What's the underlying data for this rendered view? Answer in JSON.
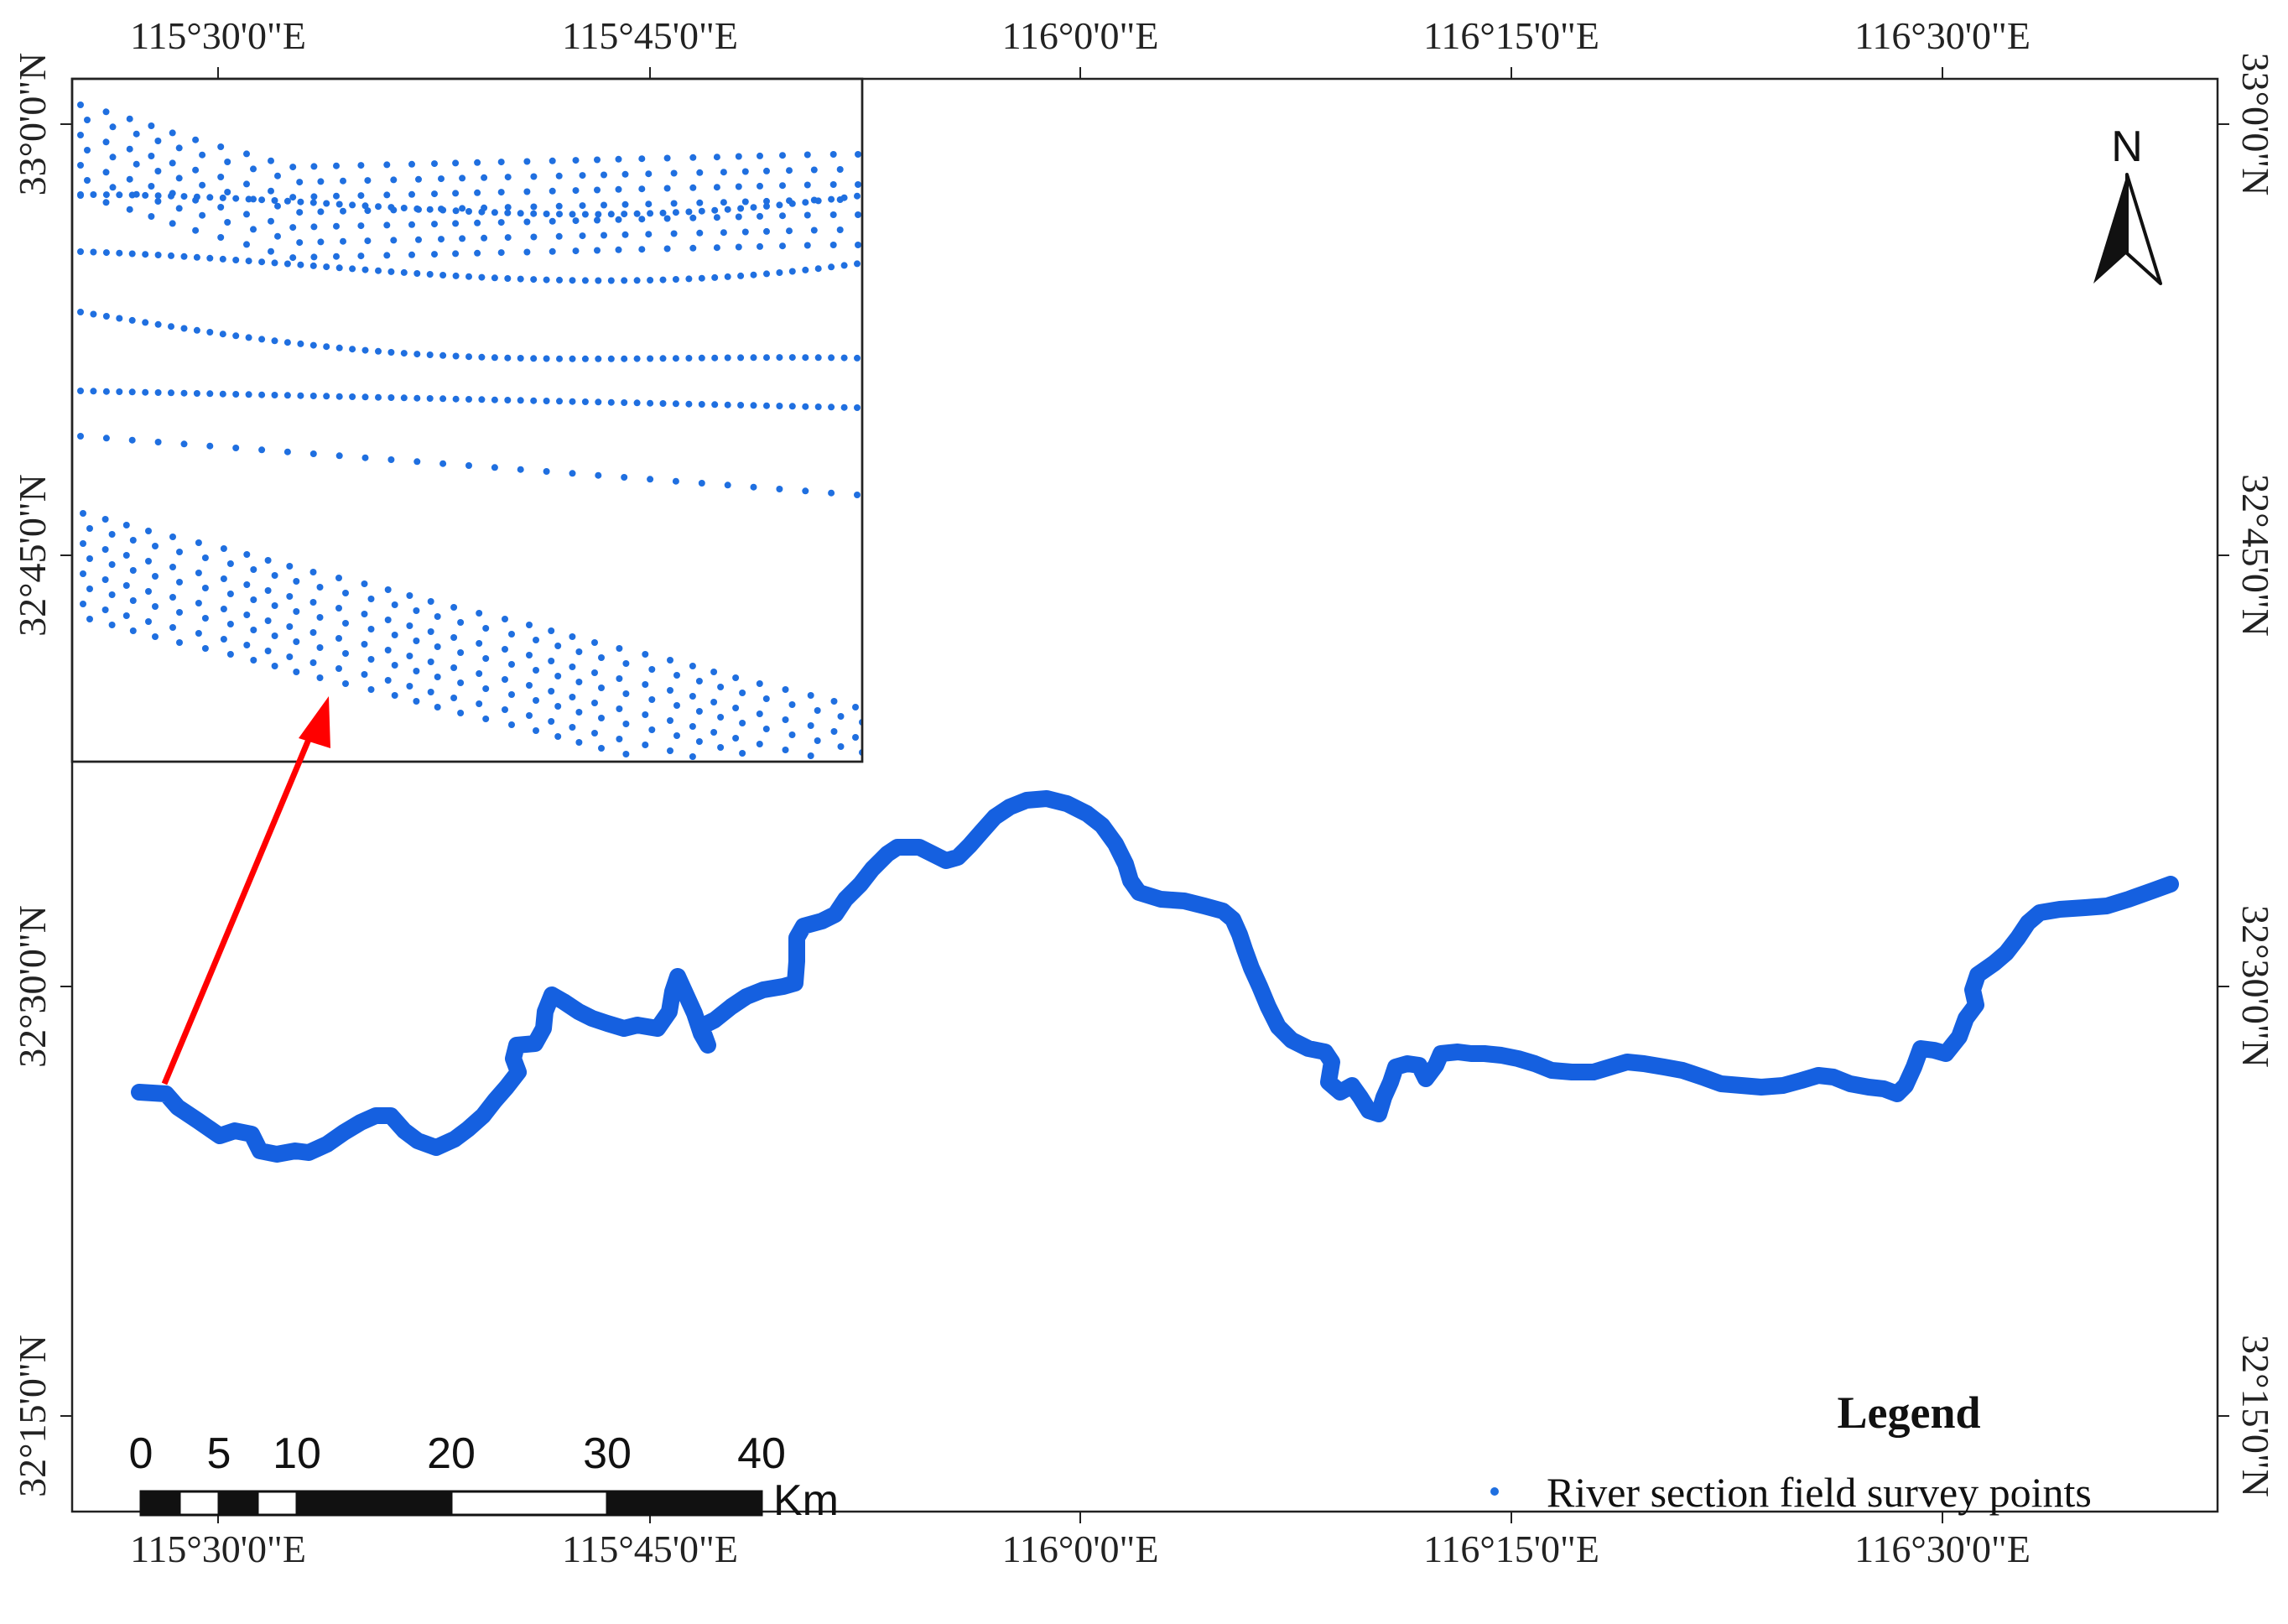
{
  "map": {
    "longitude_labels": [
      "115°30'0\"E",
      "115°45'0\"E",
      "116°0'0\"E",
      "116°15'0\"E",
      "116°30'0\"E"
    ],
    "latitude_labels": [
      "33°0'0\"N",
      "32°45'0\"N",
      "32°30'0\"N",
      "32°15'0\"N"
    ],
    "north_arrow_label": "N",
    "legend": {
      "title": "Legend",
      "item_label": "River section field survey points"
    },
    "scale_bar": {
      "tick_labels": [
        "0",
        "5",
        "10",
        "20",
        "30",
        "40"
      ],
      "unit": "Km"
    },
    "colors": {
      "river": "#1560e0",
      "survey_points": "#1f6fe0",
      "callout_arrow": "#ff0000",
      "frame": "#222222"
    }
  }
}
